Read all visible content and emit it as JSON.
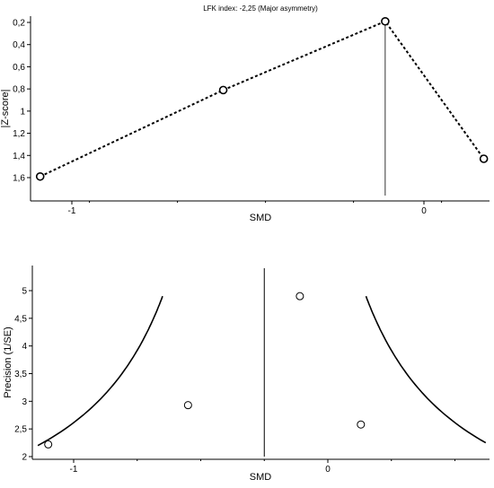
{
  "chart_data": [
    {
      "type": "scatter",
      "title": "LFK index: -2,25 (Major asymmetry)",
      "xlabel": "SMD",
      "ylabel": "|Z-score|",
      "x_ticks": [
        {
          "value": -1,
          "label": "-1"
        },
        {
          "value": 0,
          "label": "0"
        }
      ],
      "y_ticks": [
        {
          "value": 0.2,
          "label": "0,2"
        },
        {
          "value": 0.4,
          "label": "0,4"
        },
        {
          "value": 0.6,
          "label": "0,6"
        },
        {
          "value": 0.8,
          "label": "0,8"
        },
        {
          "value": 1.0,
          "label": "1"
        },
        {
          "value": 1.2,
          "label": "1,2"
        },
        {
          "value": 1.4,
          "label": "1,4"
        },
        {
          "value": 1.6,
          "label": "1,6"
        }
      ],
      "xlim": [
        -1.1,
        0.18
      ],
      "ylim": [
        0.2,
        1.6
      ],
      "y_inverted": true,
      "points": [
        {
          "x": -1.09,
          "y": 1.59
        },
        {
          "x": -0.57,
          "y": 0.81
        },
        {
          "x": -0.11,
          "y": 0.19
        },
        {
          "x": 0.17,
          "y": 1.43
        }
      ],
      "connect_points": "dotted",
      "reference_line_x": -0.11
    },
    {
      "type": "scatter",
      "title": "",
      "xlabel": "SMD",
      "ylabel": "Precision (1/SE)",
      "x_ticks": [
        {
          "value": -1,
          "label": "-1"
        },
        {
          "value": 0,
          "label": "0"
        }
      ],
      "y_ticks": [
        {
          "value": 2,
          "label": "2"
        },
        {
          "value": 2.5,
          "label": "2,5"
        },
        {
          "value": 3,
          "label": "3"
        },
        {
          "value": 3.5,
          "label": "3,5"
        },
        {
          "value": 4,
          "label": "4"
        },
        {
          "value": 4.5,
          "label": "4,5"
        },
        {
          "value": 5,
          "label": "5"
        }
      ],
      "xlim": [
        -1.12,
        0.46
      ],
      "ylim": [
        1.95,
        5.2
      ],
      "points": [
        {
          "x": -1.1,
          "y": 2.22
        },
        {
          "x": -0.55,
          "y": 2.93
        },
        {
          "x": -0.11,
          "y": 4.9
        },
        {
          "x": 0.13,
          "y": 2.58
        }
      ],
      "pooled_effect_x": -0.25,
      "funnel_limits": true
    }
  ]
}
